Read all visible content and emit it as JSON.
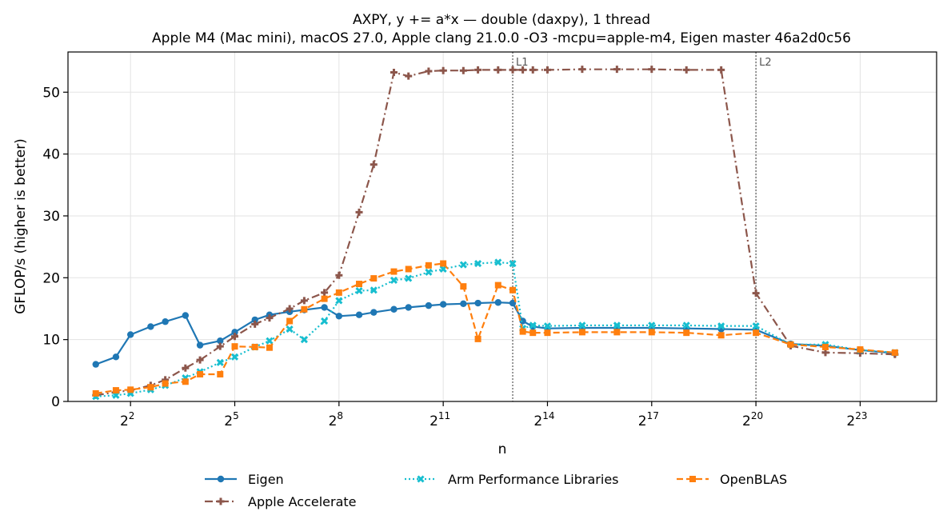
{
  "chart_data": {
    "type": "line",
    "title": "AXPY, y += a*x — double (daxpy), 1 thread",
    "subtitle": "Apple M4 (Mac mini), macOS 27.0, Apple clang 21.0.0 -O3 -mcpu=apple-m4, Eigen master 46a2d0c56",
    "xlabel": "n",
    "ylabel": "GFLOP/s (higher is better)",
    "x_scale": "log2",
    "xlim_log2": [
      0.2,
      25.2
    ],
    "ylim": [
      0,
      56.5
    ],
    "x_ticks": [
      {
        "base": "2",
        "exp": "2",
        "log2": 2
      },
      {
        "base": "2",
        "exp": "5",
        "log2": 5
      },
      {
        "base": "2",
        "exp": "8",
        "log2": 8
      },
      {
        "base": "2",
        "exp": "11",
        "log2": 11
      },
      {
        "base": "2",
        "exp": "14",
        "log2": 14
      },
      {
        "base": "2",
        "exp": "17",
        "log2": 17
      },
      {
        "base": "2",
        "exp": "20",
        "log2": 20
      },
      {
        "base": "2",
        "exp": "23",
        "log2": 23
      }
    ],
    "y_ticks": [
      0,
      10,
      20,
      30,
      40,
      50
    ],
    "grid": true,
    "legend_position": "bottom-center",
    "cache_markers": [
      {
        "label": "L1",
        "log2": 13.0
      },
      {
        "label": "L2",
        "log2": 20.0
      }
    ],
    "series": [
      {
        "name": "Eigen",
        "color": "#1f77b4",
        "marker": "circle",
        "line_style": "solid",
        "x_log2": [
          1.0,
          1.58,
          2.0,
          2.58,
          3.0,
          3.58,
          4.0,
          4.58,
          5.0,
          5.58,
          6.0,
          6.58,
          7.0,
          7.58,
          8.0,
          8.58,
          9.0,
          9.58,
          10.0,
          10.58,
          11.0,
          11.58,
          12.0,
          12.58,
          13.0,
          13.29,
          13.58,
          14.0,
          15.0,
          16.0,
          17.0,
          18.0,
          19.0,
          20.0,
          21.0,
          22.0,
          23.0,
          24.0
        ],
        "y": [
          6.0,
          7.2,
          10.8,
          12.1,
          12.9,
          13.9,
          9.1,
          9.8,
          11.2,
          13.2,
          14.0,
          14.5,
          14.8,
          15.2,
          13.8,
          14.0,
          14.4,
          14.9,
          15.2,
          15.5,
          15.7,
          15.8,
          15.9,
          16.0,
          15.9,
          13.0,
          12.1,
          11.8,
          11.9,
          11.9,
          11.9,
          11.8,
          11.7,
          11.6,
          9.3,
          9.0,
          8.3,
          7.8
        ]
      },
      {
        "name": "Apple Accelerate",
        "color": "#8c564b",
        "marker": "plus",
        "line_style": "dashdot",
        "x_log2": [
          1.0,
          1.58,
          2.0,
          2.58,
          3.0,
          3.58,
          4.0,
          4.58,
          5.0,
          5.58,
          6.0,
          6.58,
          7.0,
          7.58,
          8.0,
          8.58,
          9.0,
          9.58,
          10.0,
          10.58,
          11.0,
          11.58,
          12.0,
          12.58,
          13.0,
          13.29,
          13.58,
          14.0,
          15.0,
          16.0,
          17.0,
          18.0,
          19.0,
          20.0,
          21.0,
          22.0,
          23.0,
          24.0
        ],
        "y": [
          1.0,
          1.5,
          1.8,
          2.6,
          3.5,
          5.4,
          6.7,
          8.9,
          10.5,
          12.5,
          13.5,
          15.0,
          16.3,
          17.6,
          20.4,
          30.6,
          38.3,
          53.2,
          52.6,
          53.4,
          53.5,
          53.5,
          53.6,
          53.6,
          53.6,
          53.6,
          53.6,
          53.6,
          53.7,
          53.7,
          53.7,
          53.6,
          53.6,
          17.5,
          9.0,
          7.9,
          7.8,
          7.6
        ]
      },
      {
        "name": "Arm Performance Libraries",
        "color": "#17becf",
        "marker": "x",
        "line_style": "dotted",
        "x_log2": [
          1.0,
          1.58,
          2.0,
          2.58,
          3.0,
          3.58,
          4.0,
          4.58,
          5.0,
          5.58,
          6.0,
          6.58,
          7.0,
          7.58,
          8.0,
          8.58,
          9.0,
          9.58,
          10.0,
          10.58,
          11.0,
          11.58,
          12.0,
          12.58,
          13.0,
          13.29,
          13.58,
          14.0,
          15.0,
          16.0,
          17.0,
          18.0,
          19.0,
          20.0,
          21.0,
          22.0,
          23.0,
          24.0
        ],
        "y": [
          0.8,
          1.0,
          1.3,
          1.9,
          2.6,
          3.8,
          4.8,
          6.3,
          7.2,
          8.8,
          9.8,
          11.7,
          10.0,
          13.0,
          16.3,
          17.9,
          18.0,
          19.6,
          19.9,
          20.9,
          21.4,
          22.1,
          22.3,
          22.5,
          22.3,
          11.8,
          12.3,
          12.2,
          12.3,
          12.3,
          12.3,
          12.3,
          12.2,
          12.2,
          9.2,
          9.2,
          8.3,
          7.9
        ]
      },
      {
        "name": "OpenBLAS",
        "color": "#ff7f0e",
        "marker": "square",
        "line_style": "dashed",
        "x_log2": [
          1.0,
          1.58,
          2.0,
          2.58,
          3.0,
          3.58,
          4.0,
          4.58,
          5.0,
          5.58,
          6.0,
          6.58,
          7.0,
          7.58,
          8.0,
          8.58,
          9.0,
          9.58,
          10.0,
          10.58,
          11.0,
          11.58,
          12.0,
          12.58,
          13.0,
          13.29,
          13.58,
          14.0,
          15.0,
          16.0,
          17.0,
          18.0,
          19.0,
          20.0,
          21.0,
          22.0,
          23.0,
          24.0
        ],
        "y": [
          1.3,
          1.8,
          1.9,
          2.3,
          2.9,
          3.2,
          4.4,
          4.4,
          8.9,
          8.8,
          8.7,
          13.0,
          14.9,
          16.6,
          17.6,
          19.0,
          19.9,
          21.0,
          21.4,
          22.0,
          22.3,
          18.6,
          10.1,
          18.8,
          18.0,
          11.3,
          11.1,
          11.1,
          11.2,
          11.2,
          11.2,
          11.1,
          10.7,
          11.1,
          9.2,
          8.8,
          8.4,
          7.9
        ]
      }
    ]
  }
}
